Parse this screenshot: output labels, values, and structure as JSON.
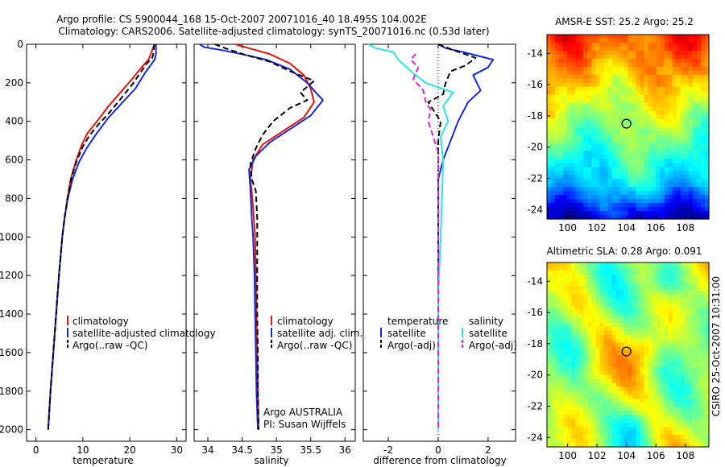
{
  "title_line1": "Argo profile: CS 5900044_168 15-Oct-2007 20071016_40 18.495S 104.002E",
  "title_line2": "Climatology: CARS2006. Satellite-adjusted climatology: synTS_20071016.nc (0.53d later)",
  "side_stamp": "CSIRO 25-Oct-2007 10:31:00",
  "colors": {
    "clim": "#e8100a",
    "sat": "#1428d8",
    "argo": "#000000",
    "sal_sat": "#28e6e6",
    "sal_argo": "#e020e0"
  },
  "chart_data": [
    {
      "type": "line",
      "panel": "temperature",
      "xlabel": "temperature",
      "xlim": [
        -2,
        32
      ],
      "ylim": [
        0,
        2060
      ],
      "xticks": [
        0,
        10,
        20,
        30
      ],
      "yticks": [
        0,
        200,
        400,
        600,
        800,
        1000,
        1200,
        1400,
        1600,
        1800,
        2000
      ],
      "legend": [
        "climatology",
        "satellite-adjusted climatology",
        "Argo(..raw -QC)"
      ],
      "series": [
        {
          "name": "climatology",
          "color": "#e8100a",
          "dash": "",
          "points": [
            [
              25.4,
              0
            ],
            [
              24.9,
              20
            ],
            [
              24.5,
              50
            ],
            [
              24.0,
              80
            ],
            [
              22.5,
              120
            ],
            [
              20.5,
              180
            ],
            [
              18.0,
              250
            ],
            [
              15.5,
              320
            ],
            [
              13.0,
              400
            ],
            [
              11.0,
              460
            ],
            [
              9.8,
              520
            ],
            [
              8.6,
              600
            ],
            [
              7.4,
              700
            ],
            [
              6.7,
              800
            ],
            [
              6.1,
              900
            ],
            [
              5.6,
              1000
            ],
            [
              4.9,
              1200
            ],
            [
              4.3,
              1400
            ],
            [
              3.7,
              1600
            ],
            [
              3.1,
              1800
            ],
            [
              2.6,
              2000
            ]
          ]
        },
        {
          "name": "satellite-adjusted climatology",
          "color": "#1428d8",
          "dash": "",
          "points": [
            [
              25.6,
              0
            ],
            [
              25.6,
              50
            ],
            [
              25.3,
              80
            ],
            [
              24.4,
              110
            ],
            [
              23.2,
              150
            ],
            [
              21.2,
              230
            ],
            [
              18.5,
              300
            ],
            [
              15.5,
              380
            ],
            [
              13.0,
              460
            ],
            [
              10.8,
              540
            ],
            [
              9.2,
              610
            ],
            [
              7.8,
              700
            ],
            [
              6.8,
              800
            ],
            [
              6.1,
              900
            ],
            [
              5.6,
              1000
            ],
            [
              4.9,
              1200
            ],
            [
              4.3,
              1400
            ],
            [
              3.7,
              1600
            ],
            [
              3.1,
              1800
            ],
            [
              2.6,
              2000
            ]
          ]
        },
        {
          "name": "Argo(..raw -QC)",
          "color": "#000000",
          "dash": "7 4",
          "points": [
            [
              25.2,
              0
            ],
            [
              25.1,
              40
            ],
            [
              24.8,
              70
            ],
            [
              23.6,
              100
            ],
            [
              22.2,
              150
            ],
            [
              20.5,
              210
            ],
            [
              18.5,
              270
            ],
            [
              15.8,
              350
            ],
            [
              13.2,
              420
            ],
            [
              11.5,
              470
            ],
            [
              10.0,
              530
            ],
            [
              8.6,
              610
            ],
            [
              7.5,
              700
            ],
            [
              6.7,
              800
            ],
            [
              6.1,
              900
            ],
            [
              5.6,
              1000
            ],
            [
              4.9,
              1200
            ],
            [
              4.3,
              1400
            ],
            [
              3.7,
              1600
            ],
            [
              3.1,
              1800
            ],
            [
              2.6,
              2000
            ]
          ]
        }
      ]
    },
    {
      "type": "line",
      "panel": "salinity",
      "xlabel": "salinity",
      "xlim": [
        33.8,
        36.15
      ],
      "ylim": [
        0,
        2060
      ],
      "xticks": [
        34,
        34.5,
        35,
        35.5,
        36
      ],
      "legend": [
        "climatology",
        "satellite adj. clim.",
        "Argo(..raw -QC)"
      ],
      "annotation": [
        "Argo AUSTRALIA",
        "PI: Susan Wijffels"
      ],
      "series": [
        {
          "name": "climatology",
          "color": "#e8100a",
          "dash": "",
          "points": [
            [
              34.4,
              0
            ],
            [
              34.6,
              20
            ],
            [
              34.9,
              50
            ],
            [
              35.2,
              100
            ],
            [
              35.4,
              160
            ],
            [
              35.5,
              230
            ],
            [
              35.55,
              300
            ],
            [
              35.4,
              380
            ],
            [
              35.1,
              450
            ],
            [
              34.8,
              520
            ],
            [
              34.66,
              600
            ],
            [
              34.62,
              700
            ],
            [
              34.65,
              800
            ],
            [
              34.67,
              900
            ],
            [
              34.69,
              1000
            ],
            [
              34.7,
              1200
            ],
            [
              34.71,
              1400
            ],
            [
              34.72,
              1600
            ],
            [
              34.73,
              1800
            ],
            [
              34.74,
              2000
            ]
          ]
        },
        {
          "name": "satellite adj. clim.",
          "color": "#1428d8",
          "dash": "",
          "points": [
            [
              33.88,
              0
            ],
            [
              33.95,
              15
            ],
            [
              34.2,
              30
            ],
            [
              34.55,
              55
            ],
            [
              34.85,
              80
            ],
            [
              35.2,
              130
            ],
            [
              35.45,
              200
            ],
            [
              35.6,
              260
            ],
            [
              35.68,
              290
            ],
            [
              35.5,
              370
            ],
            [
              35.2,
              440
            ],
            [
              34.9,
              510
            ],
            [
              34.7,
              580
            ],
            [
              34.6,
              650
            ],
            [
              34.62,
              750
            ],
            [
              34.64,
              900
            ],
            [
              34.66,
              1000
            ],
            [
              34.68,
              1200
            ],
            [
              34.69,
              1400
            ],
            [
              34.7,
              1600
            ],
            [
              34.71,
              1800
            ],
            [
              34.73,
              2000
            ]
          ]
        },
        {
          "name": "Argo(..raw -QC)",
          "color": "#000000",
          "dash": "7 4",
          "points": [
            [
              34.1,
              0
            ],
            [
              34.25,
              20
            ],
            [
              34.5,
              50
            ],
            [
              34.9,
              90
            ],
            [
              35.2,
              140
            ],
            [
              35.55,
              190
            ],
            [
              35.35,
              250
            ],
            [
              35.45,
              290
            ],
            [
              35.2,
              330
            ],
            [
              34.95,
              400
            ],
            [
              34.8,
              470
            ],
            [
              34.7,
              540
            ],
            [
              34.62,
              620
            ],
            [
              34.64,
              700
            ],
            [
              34.7,
              760
            ],
            [
              34.72,
              900
            ],
            [
              34.72,
              1000
            ],
            [
              34.72,
              1200
            ],
            [
              34.72,
              1400
            ],
            [
              34.73,
              1600
            ],
            [
              34.73,
              1800
            ],
            [
              34.74,
              2000
            ]
          ]
        }
      ]
    },
    {
      "type": "line",
      "panel": "difference",
      "xlabel": "difference from climatology",
      "xlim": [
        -3,
        3.1
      ],
      "ylim": [
        0,
        2060
      ],
      "xticks": [
        -2,
        0,
        2
      ],
      "legend_left_title": "temperature",
      "legend_left": [
        "satellite",
        "Argo(-adj)"
      ],
      "legend_right_title": "salinity",
      "legend_right": [
        "satellite",
        "Argo(-adj)"
      ],
      "series": [
        {
          "name": "temperature satellite",
          "color": "#1428d8",
          "dash": "",
          "points": [
            [
              0.0,
              0
            ],
            [
              0.3,
              20
            ],
            [
              1.0,
              40
            ],
            [
              1.6,
              60
            ],
            [
              2.2,
              80
            ],
            [
              2.0,
              120
            ],
            [
              1.4,
              160
            ],
            [
              1.7,
              240
            ],
            [
              1.2,
              300
            ],
            [
              0.8,
              400
            ],
            [
              0.5,
              500
            ],
            [
              0.2,
              600
            ],
            [
              0.0,
              700
            ],
            [
              0.0,
              1000
            ],
            [
              0.0,
              2000
            ]
          ]
        },
        {
          "name": "temperature Argo(-adj)",
          "color": "#000000",
          "dash": "7 4",
          "points": [
            [
              0.0,
              0
            ],
            [
              0.6,
              30
            ],
            [
              1.5,
              70
            ],
            [
              1.1,
              110
            ],
            [
              0.5,
              140
            ],
            [
              0.3,
              200
            ],
            [
              0.2,
              260
            ],
            [
              -0.4,
              300
            ],
            [
              -0.2,
              340
            ],
            [
              0.1,
              400
            ],
            [
              0.0,
              500
            ],
            [
              0.0,
              700
            ],
            [
              0.0,
              1000
            ],
            [
              0.0,
              2000
            ]
          ]
        },
        {
          "name": "salinity satellite",
          "color": "#28e6e6",
          "dash": "",
          "points": [
            [
              -2.8,
              0
            ],
            [
              -2.5,
              20
            ],
            [
              -1.8,
              40
            ],
            [
              -1.6,
              80
            ],
            [
              -1.0,
              150
            ],
            [
              -0.5,
              200
            ],
            [
              0.6,
              250
            ],
            [
              0.2,
              320
            ],
            [
              0.4,
              400
            ],
            [
              0.1,
              480
            ],
            [
              0.2,
              600
            ],
            [
              0.15,
              800
            ],
            [
              0.1,
              1000
            ],
            [
              0.0,
              1300
            ],
            [
              0.0,
              1600
            ],
            [
              0.0,
              2000
            ]
          ]
        },
        {
          "name": "salinity Argo(-adj)",
          "color": "#e020e0",
          "dash": "7 4",
          "points": [
            [
              -0.9,
              50
            ],
            [
              -1.1,
              80
            ],
            [
              -0.8,
              120
            ],
            [
              -1.0,
              180
            ],
            [
              -0.6,
              240
            ],
            [
              -0.5,
              300
            ],
            [
              -0.3,
              340
            ],
            [
              -0.4,
              400
            ],
            [
              -0.2,
              480
            ],
            [
              0.0,
              560
            ],
            [
              0.0,
              700
            ],
            [
              0.0,
              1000
            ],
            [
              0.0,
              2000
            ]
          ]
        }
      ]
    },
    {
      "type": "heatmap",
      "panel": "sst",
      "title": "AMSR-E SST: 25.2  Argo: 25.2",
      "xlim": [
        98.6,
        109.6
      ],
      "ylim": [
        -24.6,
        -12.8
      ],
      "xticks": [
        100,
        102,
        104,
        106,
        108
      ],
      "yticks": [
        -14,
        -16,
        -18,
        -20,
        -22,
        -24
      ],
      "marker": {
        "lon": 104.0,
        "lat": -18.5
      }
    },
    {
      "type": "heatmap",
      "panel": "sla",
      "title": "Altimetric SLA: 0.28  Argo: 0.091",
      "xlim": [
        98.6,
        109.6
      ],
      "ylim": [
        -24.6,
        -12.8
      ],
      "xticks": [
        100,
        102,
        104,
        106,
        108
      ],
      "yticks": [
        -14,
        -16,
        -18,
        -20,
        -22,
        -24
      ],
      "marker": {
        "lon": 104.0,
        "lat": -18.5
      }
    }
  ]
}
